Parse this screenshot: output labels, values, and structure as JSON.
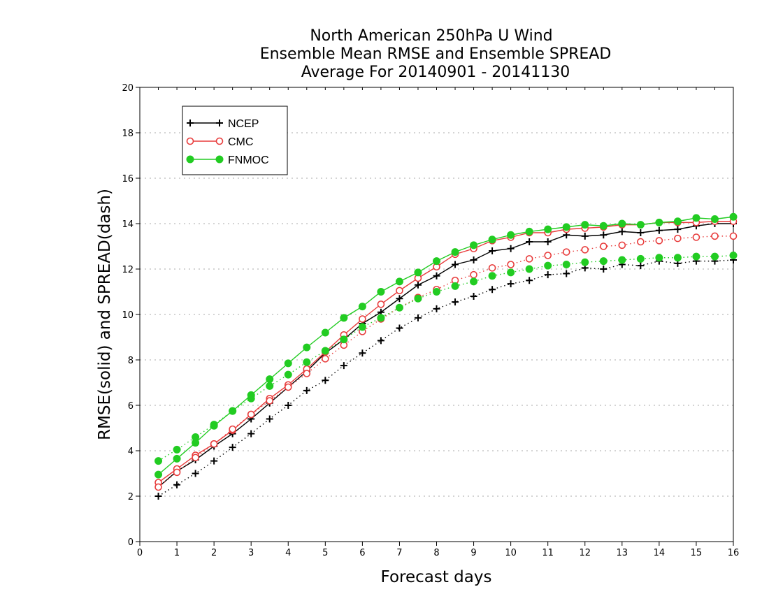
{
  "chart_data": {
    "type": "line",
    "title": [
      "North American 250hPa U Wind",
      "Ensemble Mean RMSE and Ensemble SPREAD",
      "Average For 20140901 - 20141130"
    ],
    "xlabel": "Forecast days",
    "ylabel": "RMSE(solid) and SPREAD(dash)",
    "xlim": [
      0,
      16
    ],
    "ylim": [
      0,
      20
    ],
    "xticks": [
      0,
      1,
      2,
      3,
      4,
      5,
      6,
      7,
      8,
      9,
      10,
      11,
      12,
      13,
      14,
      15,
      16
    ],
    "yticks": [
      0,
      2,
      4,
      6,
      8,
      10,
      12,
      14,
      16,
      18,
      20
    ],
    "grid": "horizontal-dotted",
    "legend_position": "top-left",
    "x": [
      0.5,
      1,
      1.5,
      2,
      2.5,
      3,
      3.5,
      4,
      4.5,
      5,
      5.5,
      6,
      6.5,
      7,
      7.5,
      8,
      8.5,
      9,
      9.5,
      10,
      10.5,
      11,
      11.5,
      12,
      12.5,
      13,
      13.5,
      14,
      14.5,
      15,
      15.5,
      16
    ],
    "series": [
      {
        "name": "NCEP",
        "kind": "RMSE",
        "style": "solid",
        "marker": "plus",
        "color": "#000000",
        "values": [
          2.4,
          3.1,
          3.6,
          4.2,
          4.75,
          5.4,
          6.1,
          6.8,
          7.5,
          8.3,
          8.9,
          9.6,
          10.1,
          10.7,
          11.3,
          11.7,
          12.2,
          12.4,
          12.8,
          12.9,
          13.2,
          13.2,
          13.5,
          13.45,
          13.5,
          13.65,
          13.6,
          13.7,
          13.75,
          13.9,
          14.0,
          14.0
        ]
      },
      {
        "name": "NCEP",
        "kind": "SPREAD",
        "style": "dotted",
        "marker": "plus",
        "color": "#000000",
        "values": [
          2.0,
          2.5,
          3.0,
          3.55,
          4.15,
          4.75,
          5.4,
          6.0,
          6.65,
          7.1,
          7.75,
          8.3,
          8.85,
          9.4,
          9.85,
          10.25,
          10.55,
          10.8,
          11.1,
          11.35,
          11.5,
          11.75,
          11.8,
          12.05,
          12.0,
          12.2,
          12.15,
          12.35,
          12.25,
          12.35,
          12.35,
          12.4
        ]
      },
      {
        "name": "CMC",
        "kind": "RMSE",
        "style": "solid",
        "marker": "open-circle",
        "color": "#e83c3c",
        "values": [
          2.6,
          3.2,
          3.8,
          4.3,
          4.9,
          5.6,
          6.3,
          6.9,
          7.6,
          8.35,
          9.1,
          9.8,
          10.45,
          11.05,
          11.6,
          12.1,
          12.65,
          12.9,
          13.25,
          13.4,
          13.6,
          13.6,
          13.75,
          13.8,
          13.85,
          13.95,
          13.95,
          14.05,
          14.05,
          14.05,
          14.1,
          14.1
        ]
      },
      {
        "name": "CMC",
        "kind": "SPREAD",
        "style": "dotted",
        "marker": "open-circle",
        "color": "#e83c3c",
        "values": [
          2.4,
          3.05,
          3.7,
          4.3,
          4.95,
          5.6,
          6.2,
          6.8,
          7.4,
          8.05,
          8.65,
          9.25,
          9.8,
          10.3,
          10.75,
          11.1,
          11.5,
          11.75,
          12.05,
          12.2,
          12.45,
          12.6,
          12.75,
          12.85,
          13.0,
          13.05,
          13.2,
          13.25,
          13.35,
          13.4,
          13.45,
          13.45
        ]
      },
      {
        "name": "FNMOC",
        "kind": "RMSE",
        "style": "solid",
        "marker": "filled-circle",
        "color": "#22cc22",
        "values": [
          2.95,
          3.65,
          4.35,
          5.1,
          5.75,
          6.45,
          7.15,
          7.85,
          8.55,
          9.2,
          9.85,
          10.35,
          11.0,
          11.45,
          11.85,
          12.35,
          12.75,
          13.05,
          13.3,
          13.5,
          13.65,
          13.75,
          13.85,
          13.95,
          13.9,
          14.0,
          13.95,
          14.05,
          14.1,
          14.25,
          14.2,
          14.3
        ]
      },
      {
        "name": "FNMOC",
        "kind": "SPREAD",
        "style": "dotted",
        "marker": "filled-circle",
        "color": "#22cc22",
        "values": [
          3.55,
          4.05,
          4.6,
          5.15,
          5.75,
          6.3,
          6.85,
          7.35,
          7.9,
          8.4,
          8.9,
          9.45,
          9.85,
          10.3,
          10.7,
          11.0,
          11.25,
          11.45,
          11.7,
          11.85,
          12.0,
          12.15,
          12.2,
          12.3,
          12.35,
          12.4,
          12.45,
          12.5,
          12.5,
          12.55,
          12.55,
          12.6
        ]
      }
    ],
    "legend": [
      {
        "label": "NCEP",
        "marker": "plus",
        "color": "#000000"
      },
      {
        "label": "CMC",
        "marker": "open-circle",
        "color": "#e83c3c"
      },
      {
        "label": "FNMOC",
        "marker": "filled-circle",
        "color": "#22cc22"
      }
    ]
  }
}
